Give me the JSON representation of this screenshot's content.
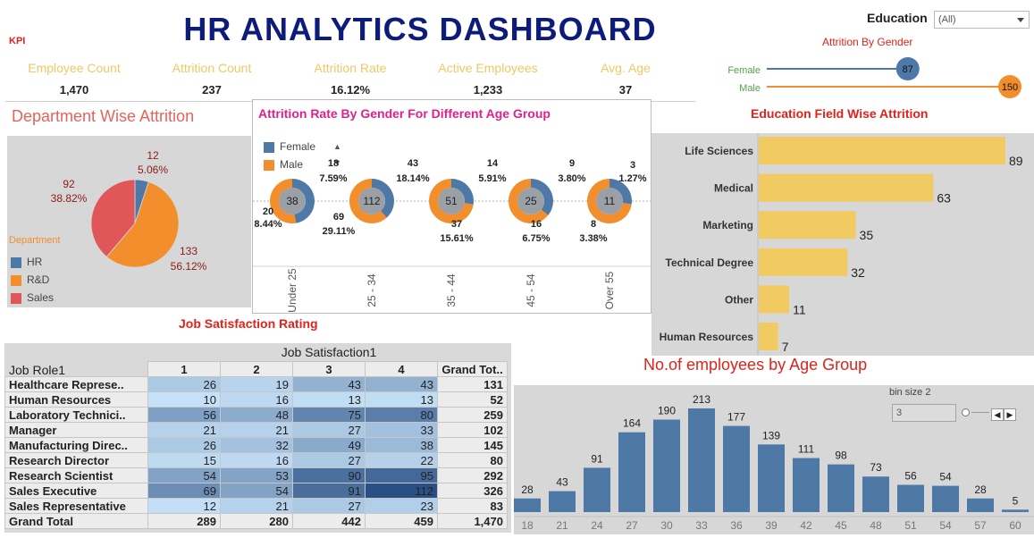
{
  "header": {
    "title": "HR ANALYTICS DASHBOARD",
    "kpi_tag": "KPI"
  },
  "filter": {
    "label": "Education",
    "value": "(All)"
  },
  "kpis": [
    {
      "label": "Employee Count",
      "value": "1,470"
    },
    {
      "label": "Attrition Count",
      "value": "237"
    },
    {
      "label": "Attrition Rate",
      "value": "16.12%"
    },
    {
      "label": "Active Employees",
      "value": "1,233"
    },
    {
      "label": "Avg. Age",
      "value": "37"
    }
  ],
  "gender_attrition": {
    "title": "Attrition By Gender",
    "rows": [
      {
        "label": "Female",
        "value": 87,
        "color": "#4e79a7"
      },
      {
        "label": "Male",
        "value": 150,
        "color": "#f28e2b"
      }
    ],
    "max": 150
  },
  "department": {
    "title": "Department Wise Attrition",
    "legend_title": "Department",
    "slices": [
      {
        "name": "HR",
        "value": 12,
        "pct": "5.06%",
        "color": "#4e79a7"
      },
      {
        "name": "R&D",
        "value": 133,
        "pct": "56.12%",
        "color": "#f28e2b"
      },
      {
        "name": "Sales",
        "value": 92,
        "pct": "38.82%",
        "color": "#e15759"
      }
    ]
  },
  "age_gender": {
    "title": "Attrition  Rate By Gender For Different Age Group",
    "legend": [
      {
        "name": "Female",
        "color": "#4e79a7"
      },
      {
        "name": "Male",
        "color": "#f28e2b"
      }
    ],
    "groups": [
      {
        "label": "Under 25",
        "total": "38",
        "female": 18,
        "female_pct": "7.59%",
        "male": 20,
        "male_pct": "8.44%"
      },
      {
        "label": "25 - 34",
        "total": "112",
        "female": 43,
        "female_pct": "18.14%",
        "male": 69,
        "male_pct": "29.11%"
      },
      {
        "label": "35 - 44",
        "total": "51",
        "female": 14,
        "female_pct": "5.91%",
        "male": 37,
        "male_pct": "15.61%"
      },
      {
        "label": "45 - 54",
        "total": "25",
        "female": 9,
        "female_pct": "3.80%",
        "male": 16,
        "male_pct": "6.75%"
      },
      {
        "label": "Over 55",
        "total": "11",
        "female": 3,
        "female_pct": "1.27%",
        "male": 8,
        "male_pct": "3.38%"
      }
    ]
  },
  "education_field": {
    "title": "Education Field Wise Attrition",
    "color": "#f1cb62",
    "categories": [
      "Life Sciences",
      "Medical",
      "Marketing",
      "Technical Degree",
      "Other",
      "Human Resources"
    ],
    "values": [
      89,
      63,
      35,
      32,
      11,
      7
    ],
    "max": 89
  },
  "job_satisfaction": {
    "title": "Job Satisfaction Rating",
    "column_group": "Job Satisfaction1",
    "row_header": "Job Role1",
    "columns": [
      "1",
      "2",
      "3",
      "4",
      "Grand Tot.."
    ],
    "rows": [
      {
        "role": "Healthcare Represe..",
        "values": [
          26,
          19,
          43,
          43
        ],
        "total": "131"
      },
      {
        "role": "Human Resources",
        "values": [
          10,
          16,
          13,
          13
        ],
        "total": "52"
      },
      {
        "role": "Laboratory Technici..",
        "values": [
          56,
          48,
          75,
          80
        ],
        "total": "259"
      },
      {
        "role": "Manager",
        "values": [
          21,
          21,
          27,
          33
        ],
        "total": "102"
      },
      {
        "role": "Manufacturing Direc..",
        "values": [
          26,
          32,
          49,
          38
        ],
        "total": "145"
      },
      {
        "role": "Research Director",
        "values": [
          15,
          16,
          27,
          22
        ],
        "total": "80"
      },
      {
        "role": "Research Scientist",
        "values": [
          54,
          53,
          90,
          95
        ],
        "total": "292"
      },
      {
        "role": "Sales Executive",
        "values": [
          69,
          54,
          91,
          112
        ],
        "total": "326"
      },
      {
        "role": "Sales Representative",
        "values": [
          12,
          21,
          27,
          23
        ],
        "total": "83"
      }
    ],
    "grand_total": {
      "label": "Grand Total",
      "values": [
        "289",
        "280",
        "442",
        "459"
      ],
      "total": "1,470"
    }
  },
  "chart_data": {
    "type": "bar",
    "title": "No.of employees by Age Group",
    "categories": [
      "18",
      "21",
      "24",
      "27",
      "30",
      "33",
      "36",
      "39",
      "42",
      "45",
      "48",
      "51",
      "54",
      "57",
      "60"
    ],
    "values": [
      28,
      43,
      91,
      164,
      190,
      213,
      177,
      139,
      111,
      98,
      73,
      56,
      54,
      28,
      5
    ],
    "ylim": [
      0,
      213
    ],
    "color": "#4e79a7"
  },
  "bin_control": {
    "label": "bin size 2",
    "value": "3"
  }
}
